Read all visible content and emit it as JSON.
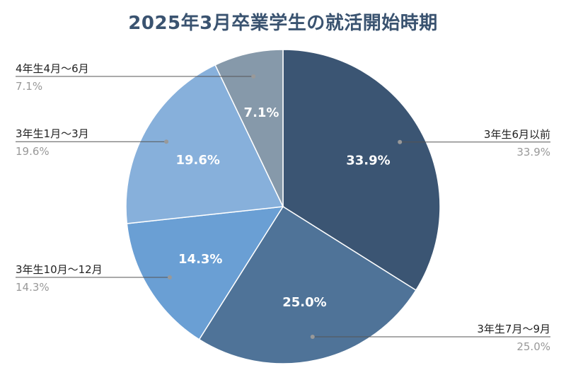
{
  "chart_data": {
    "type": "pie",
    "title": "2025年3月卒業学生の就活開始時期",
    "slices": [
      {
        "label": "3年生6月以前",
        "value": 33.9,
        "value_label": "33.9%",
        "color": "#3b5573",
        "label_side": "right"
      },
      {
        "label": "3年生7月〜9月",
        "value": 25.0,
        "value_label": "25.0%",
        "color": "#4f7398",
        "label_side": "right"
      },
      {
        "label": "3年生10月〜12月",
        "value": 14.3,
        "value_label": "14.3%",
        "color": "#6a9fd4",
        "label_side": "left"
      },
      {
        "label": "3年生1月〜3月",
        "value": 19.6,
        "value_label": "19.6%",
        "color": "#87b0db",
        "label_side": "left"
      },
      {
        "label": "4年生4月〜6月",
        "value": 7.1,
        "value_label": "7.1%",
        "color": "#8699aa",
        "label_side": "left"
      }
    ],
    "start_angle_deg": 0,
    "direction": "clockwise",
    "legend": "none",
    "slice_separator_color": "#ffffff",
    "leader_line_color": "#555555",
    "leader_dot_color": "#999999",
    "category_label_color": "#222222",
    "value_label_color": "#999999",
    "inside_label_color": "#ffffff"
  }
}
